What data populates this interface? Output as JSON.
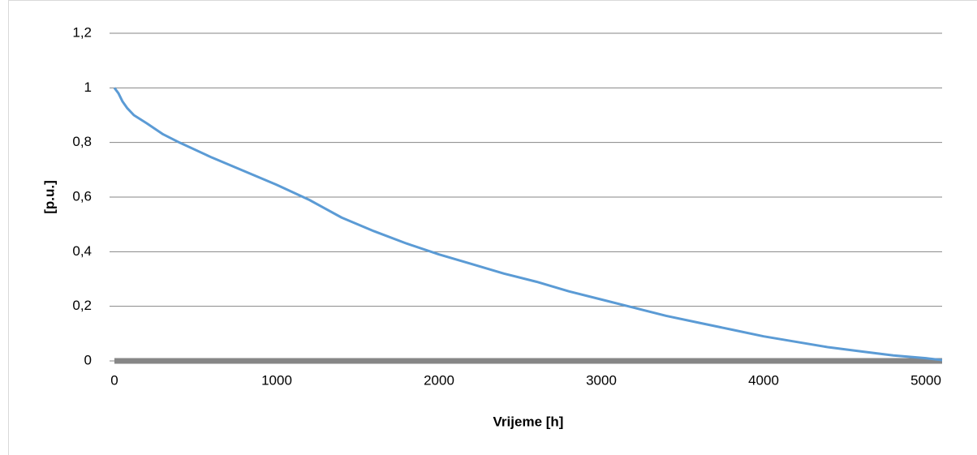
{
  "chart_data": {
    "type": "line",
    "x_label": "Vrijeme [h]",
    "y_label": "[p.u.]",
    "x": [
      0,
      25,
      50,
      80,
      120,
      200,
      300,
      400,
      600,
      800,
      1000,
      1200,
      1400,
      1600,
      1800,
      2000,
      2200,
      2400,
      2600,
      2800,
      3000,
      3200,
      3400,
      3600,
      3800,
      4000,
      4200,
      4400,
      4600,
      4800,
      5000,
      5100
    ],
    "series": [
      {
        "name": "[p.u.]",
        "color": "#5b9bd5",
        "values": [
          1,
          0.98,
          0.95,
          0.925,
          0.9,
          0.87,
          0.83,
          0.8,
          0.745,
          0.695,
          0.645,
          0.59,
          0.525,
          0.475,
          0.43,
          0.39,
          0.355,
          0.32,
          0.29,
          0.255,
          0.225,
          0.195,
          0.165,
          0.14,
          0.115,
          0.09,
          0.07,
          0.05,
          0.035,
          0.02,
          0.01,
          0.003
        ]
      }
    ],
    "xlim": [
      0,
      5100
    ],
    "xticks": [
      0,
      1000,
      2000,
      3000,
      4000,
      5000
    ],
    "ylim": [
      0,
      1.2
    ],
    "yticks": [
      0,
      {
        "value": 0.2,
        "label": "0,2"
      },
      {
        "value": 0.4,
        "label": "0,4"
      },
      {
        "value": 0.6,
        "label": "0,6"
      },
      {
        "value": 0.8,
        "label": "0,8"
      },
      1,
      {
        "value": 1.2,
        "label": "1,2"
      }
    ],
    "grid": true
  }
}
